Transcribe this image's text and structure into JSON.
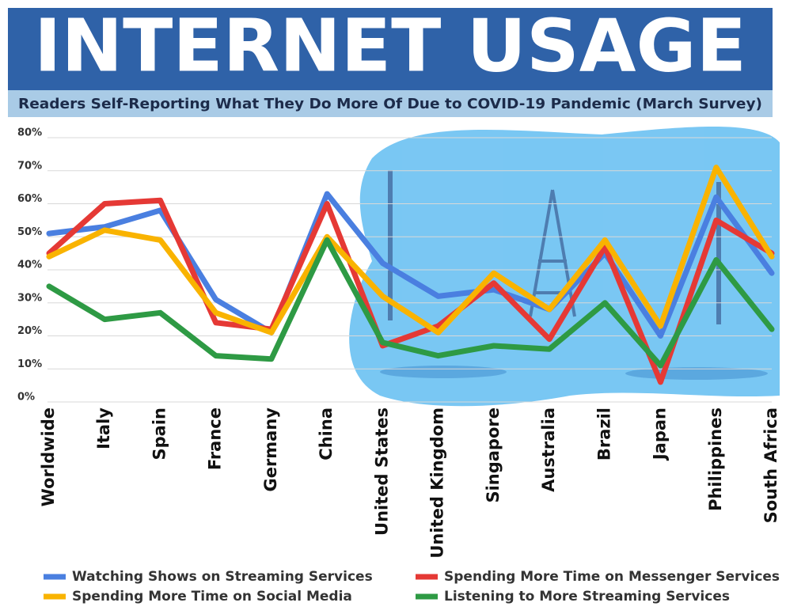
{
  "chart_data": {
    "type": "line",
    "title": "INTERNET USAGE",
    "subtitle": "Readers Self-Reporting What They Do More Of Due to COVID-19 Pandemic (March Survey)",
    "categories": [
      "Worldwide",
      "Italy",
      "Spain",
      "France",
      "Germany",
      "China",
      "United States",
      "United Kingdom",
      "Singapore",
      "Australia",
      "Brazil",
      "Japan",
      "Philippines",
      "South Africa"
    ],
    "series": [
      {
        "name": "Watching Shows on Streaming Services",
        "color": "#4a7fe0",
        "values": [
          51,
          53,
          58,
          31,
          21,
          63,
          42,
          32,
          34,
          28,
          45,
          20,
          62,
          39
        ]
      },
      {
        "name": "Spending More Time on Messenger Services",
        "color": "#e53935",
        "values": [
          45,
          60,
          61,
          24,
          22,
          60,
          17,
          23,
          36,
          19,
          47,
          6,
          55,
          45
        ]
      },
      {
        "name": "Spending More Time on Social Media",
        "color": "#f9b300",
        "values": [
          44,
          52,
          49,
          27,
          21,
          50,
          32,
          21,
          39,
          28,
          49,
          23,
          71,
          44
        ]
      },
      {
        "name": "Listening to More Streaming Services",
        "color": "#2e9a44",
        "values": [
          35,
          25,
          27,
          14,
          13,
          49,
          18,
          14,
          17,
          16,
          30,
          11,
          43,
          22
        ]
      }
    ],
    "ylim": [
      0,
      80
    ],
    "yticks": [
      {
        "value": 0,
        "label": "0%"
      },
      {
        "value": 10,
        "label": "10%"
      },
      {
        "value": 20,
        "label": "20%"
      },
      {
        "value": 30,
        "label": "30%"
      },
      {
        "value": 40,
        "label": "40%"
      },
      {
        "value": 50,
        "label": "50%"
      },
      {
        "value": 60,
        "label": "60%"
      },
      {
        "value": 70,
        "label": "70%"
      },
      {
        "value": 80,
        "label": "80%"
      }
    ],
    "grid": true
  }
}
